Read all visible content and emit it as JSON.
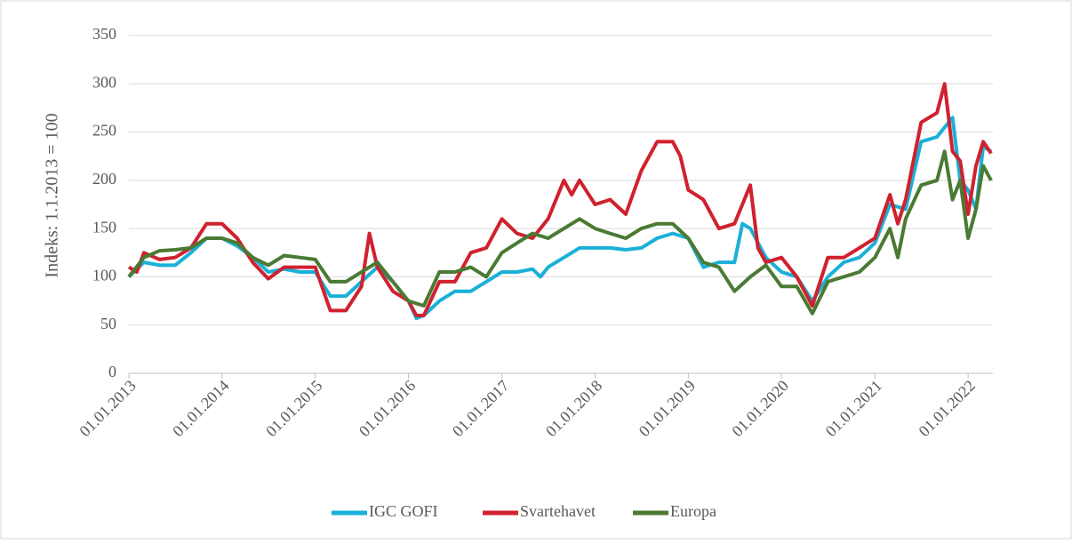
{
  "chart_data": {
    "type": "line",
    "y_label": "Indeks: 1.1.2013 = 100",
    "ylim": [
      0,
      350
    ],
    "yticks": [
      0,
      50,
      100,
      150,
      200,
      250,
      300,
      350
    ],
    "grid": true,
    "xlim": [
      "2013-01-01",
      "2022-04-08"
    ],
    "xticks": [
      {
        "value": "2013-01-01",
        "label": "01.01.2013"
      },
      {
        "value": "2014-01-01",
        "label": "01.01.2014"
      },
      {
        "value": "2015-01-01",
        "label": "01.01.2015"
      },
      {
        "value": "2016-01-01",
        "label": "01.01.2016"
      },
      {
        "value": "2017-01-01",
        "label": "01.01.2017"
      },
      {
        "value": "2018-01-01",
        "label": "01.01.2018"
      },
      {
        "value": "2019-01-01",
        "label": "01.01.2019"
      },
      {
        "value": "2020-01-01",
        "label": "01.01.2020"
      },
      {
        "value": "2021-01-01",
        "label": "01.01.2021"
      },
      {
        "value": "2022-01-01",
        "label": "01.01.2022"
      }
    ],
    "legend": "bottom",
    "series": [
      {
        "name": "IGC GOFI",
        "color": "#1ab0d8",
        "x": [
          "2013-01-01",
          "2013-03-01",
          "2013-05-01",
          "2013-07-01",
          "2013-09-01",
          "2013-11-01",
          "2014-01-01",
          "2014-03-01",
          "2014-05-01",
          "2014-07-01",
          "2014-09-01",
          "2014-11-01",
          "2015-01-01",
          "2015-03-01",
          "2015-05-01",
          "2015-07-01",
          "2015-09-01",
          "2015-11-01",
          "2016-01-01",
          "2016-02-01",
          "2016-03-01",
          "2016-05-01",
          "2016-07-01",
          "2016-09-01",
          "2016-11-01",
          "2017-01-01",
          "2017-03-01",
          "2017-05-01",
          "2017-06-01",
          "2017-07-01",
          "2017-09-01",
          "2017-11-01",
          "2018-01-01",
          "2018-03-01",
          "2018-05-01",
          "2018-07-01",
          "2018-09-01",
          "2018-11-01",
          "2019-01-01",
          "2019-03-01",
          "2019-05-01",
          "2019-07-01",
          "2019-08-01",
          "2019-09-01",
          "2019-11-01",
          "2020-01-01",
          "2020-03-01",
          "2020-05-01",
          "2020-07-01",
          "2020-09-01",
          "2020-11-01",
          "2021-01-01",
          "2021-03-01",
          "2021-05-01",
          "2021-07-01",
          "2021-09-01",
          "2021-11-01",
          "2021-12-01",
          "2022-01-01",
          "2022-02-01",
          "2022-03-01",
          "2022-04-01"
        ],
        "values": [
          100,
          115,
          112,
          112,
          125,
          140,
          140,
          132,
          120,
          105,
          108,
          105,
          105,
          80,
          80,
          95,
          110,
          95,
          75,
          57,
          60,
          75,
          85,
          85,
          95,
          105,
          105,
          108,
          100,
          110,
          120,
          130,
          130,
          130,
          128,
          130,
          140,
          145,
          140,
          110,
          115,
          115,
          155,
          150,
          120,
          105,
          100,
          75,
          100,
          115,
          120,
          135,
          175,
          170,
          240,
          245,
          265,
          200,
          190,
          170,
          235,
          230
        ]
      },
      {
        "name": "Svartehavet",
        "color": "#d0212e",
        "x": [
          "2013-01-01",
          "2013-02-01",
          "2013-03-01",
          "2013-05-01",
          "2013-07-01",
          "2013-09-01",
          "2013-11-01",
          "2014-01-01",
          "2014-03-01",
          "2014-05-01",
          "2014-07-01",
          "2014-09-01",
          "2014-11-01",
          "2015-01-01",
          "2015-03-01",
          "2015-05-01",
          "2015-07-01",
          "2015-08-01",
          "2015-09-01",
          "2015-11-01",
          "2016-01-01",
          "2016-02-01",
          "2016-03-01",
          "2016-05-01",
          "2016-07-01",
          "2016-09-01",
          "2016-11-01",
          "2017-01-01",
          "2017-03-01",
          "2017-05-01",
          "2017-07-01",
          "2017-09-01",
          "2017-10-01",
          "2017-11-01",
          "2018-01-01",
          "2018-03-01",
          "2018-05-01",
          "2018-07-01",
          "2018-09-01",
          "2018-11-01",
          "2018-12-01",
          "2019-01-01",
          "2019-03-01",
          "2019-05-01",
          "2019-07-01",
          "2019-09-01",
          "2019-10-01",
          "2019-11-01",
          "2020-01-01",
          "2020-03-01",
          "2020-05-01",
          "2020-07-01",
          "2020-09-01",
          "2020-11-01",
          "2021-01-01",
          "2021-03-01",
          "2021-04-01",
          "2021-05-01",
          "2021-07-01",
          "2021-09-01",
          "2021-10-01",
          "2021-11-01",
          "2021-12-01",
          "2022-01-01",
          "2022-02-01",
          "2022-03-01",
          "2022-04-01"
        ],
        "values": [
          110,
          105,
          125,
          118,
          120,
          130,
          155,
          155,
          140,
          115,
          98,
          110,
          110,
          110,
          65,
          65,
          90,
          145,
          110,
          85,
          75,
          60,
          60,
          95,
          95,
          125,
          130,
          160,
          145,
          140,
          160,
          200,
          185,
          200,
          175,
          180,
          165,
          210,
          240,
          240,
          225,
          190,
          180,
          150,
          155,
          195,
          130,
          115,
          120,
          100,
          70,
          120,
          120,
          130,
          140,
          185,
          155,
          180,
          260,
          270,
          300,
          230,
          220,
          165,
          215,
          240,
          228
        ]
      },
      {
        "name": "Europa",
        "color": "#4a7a33",
        "x": [
          "2013-01-01",
          "2013-03-01",
          "2013-05-01",
          "2013-07-01",
          "2013-09-01",
          "2013-11-01",
          "2014-01-01",
          "2014-03-01",
          "2014-05-01",
          "2014-07-01",
          "2014-09-01",
          "2014-11-01",
          "2015-01-01",
          "2015-03-01",
          "2015-05-01",
          "2015-07-01",
          "2015-09-01",
          "2015-11-01",
          "2016-01-01",
          "2016-03-01",
          "2016-05-01",
          "2016-07-01",
          "2016-09-01",
          "2016-11-01",
          "2017-01-01",
          "2017-03-01",
          "2017-05-01",
          "2017-07-01",
          "2017-09-01",
          "2017-11-01",
          "2018-01-01",
          "2018-03-01",
          "2018-05-01",
          "2018-07-01",
          "2018-09-01",
          "2018-11-01",
          "2019-01-01",
          "2019-03-01",
          "2019-05-01",
          "2019-07-01",
          "2019-09-01",
          "2019-11-01",
          "2020-01-01",
          "2020-03-01",
          "2020-05-01",
          "2020-07-01",
          "2020-09-01",
          "2020-11-01",
          "2021-01-01",
          "2021-03-01",
          "2021-04-01",
          "2021-05-01",
          "2021-07-01",
          "2021-09-01",
          "2021-10-01",
          "2021-11-01",
          "2021-12-01",
          "2022-01-01",
          "2022-02-01",
          "2022-03-01",
          "2022-04-01"
        ],
        "values": [
          100,
          120,
          127,
          128,
          130,
          140,
          140,
          135,
          120,
          112,
          122,
          120,
          118,
          95,
          95,
          105,
          115,
          95,
          75,
          70,
          105,
          105,
          110,
          100,
          125,
          135,
          145,
          140,
          150,
          160,
          150,
          145,
          140,
          150,
          155,
          155,
          140,
          115,
          110,
          85,
          100,
          112,
          90,
          90,
          62,
          95,
          100,
          105,
          120,
          150,
          120,
          160,
          195,
          200,
          230,
          180,
          200,
          140,
          170,
          215,
          200
        ]
      }
    ]
  }
}
